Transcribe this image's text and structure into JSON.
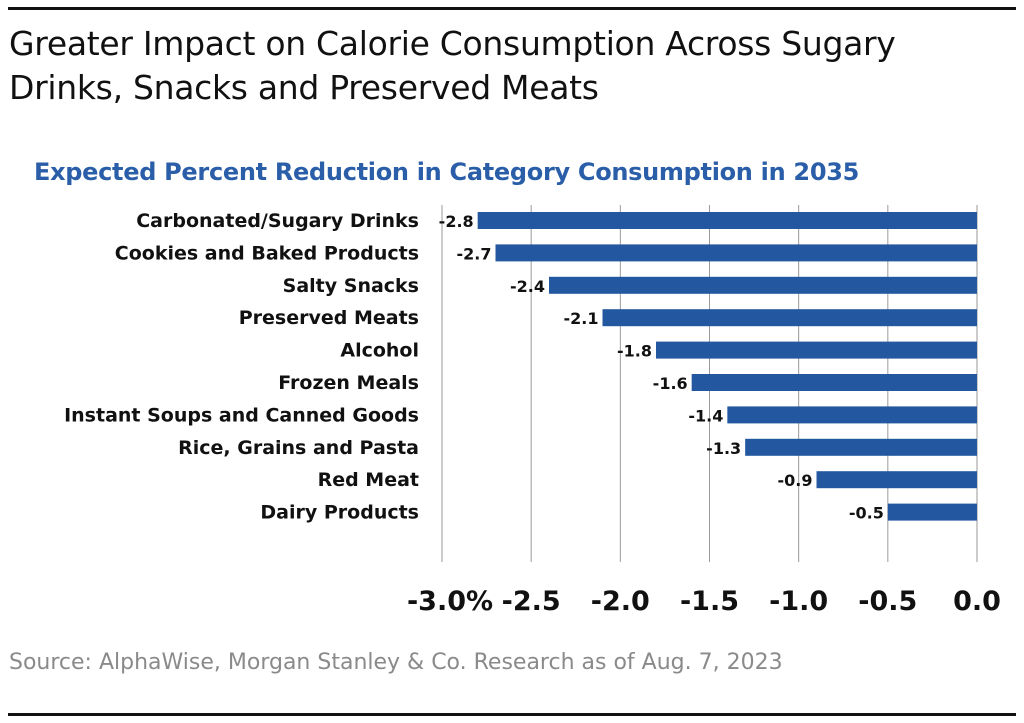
{
  "chart_data": {
    "type": "bar",
    "orientation": "horizontal",
    "title": "Greater Impact on Calorie Consumption Across Sugary Drinks, Snacks and Preserved Meats",
    "subtitle": "Expected Percent Reduction in Category Consumption in 2035",
    "categories": [
      "Carbonated/Sugary Drinks",
      "Cookies and Baked Products",
      "Salty Snacks",
      "Preserved Meats",
      "Alcohol",
      "Frozen Meals",
      "Instant Soups and Canned Goods",
      "Rice, Grains and Pasta",
      "Red Meat",
      "Dairy Products"
    ],
    "values": [
      -2.8,
      -2.7,
      -2.4,
      -2.1,
      -1.8,
      -1.6,
      -1.4,
      -1.3,
      -0.9,
      -0.5
    ],
    "data_labels": [
      "-2.8",
      "-2.7",
      "-2.4",
      "-2.1",
      "-1.8",
      "-1.6",
      "-1.4",
      "-1.3",
      "-0.9",
      "-0.5"
    ],
    "xlim": [
      -3.0,
      0.0
    ],
    "xticks": [
      -3.0,
      -2.5,
      -2.0,
      -1.5,
      -1.0,
      -0.5,
      0.0
    ],
    "xtick_labels": [
      "-3.0%",
      "-2.5",
      "-2.0",
      "-1.5",
      "-1.0",
      "-0.5",
      "0.0"
    ],
    "grid": "vertical",
    "bar_color": "#2358a0",
    "source": "Source: AlphaWise, Morgan Stanley & Co. Research as of Aug. 7, 2023"
  }
}
